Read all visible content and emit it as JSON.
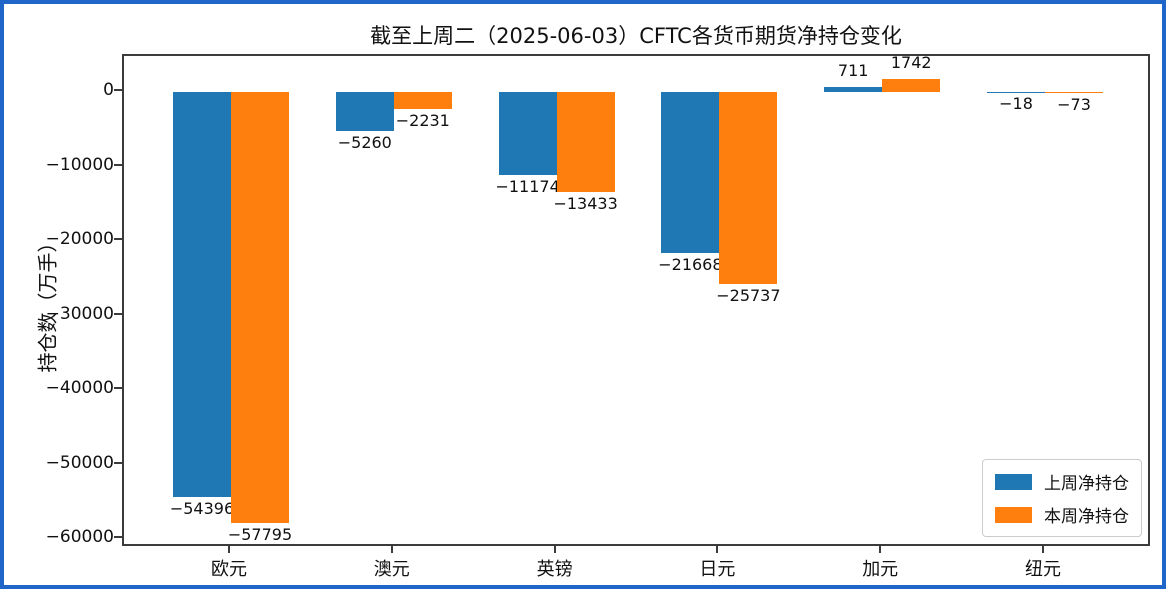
{
  "page": {
    "outer_border_color": "#2065c8",
    "background_color": "#ffffff",
    "axes_frame_color": "#3b3b3b"
  },
  "chart_data": {
    "type": "bar",
    "title": "截至上周二（2025-06-03）CFTC各货币期货净持仓变化",
    "xlabel": "",
    "ylabel": "持仓数（万手）",
    "categories": [
      "欧元",
      "澳元",
      "英镑",
      "日元",
      "加元",
      "纽元"
    ],
    "series": [
      {
        "name": "上周净持仓",
        "color": "#1f77b4",
        "values": [
          -54396,
          -5260,
          -11174,
          -21668,
          711,
          -18
        ]
      },
      {
        "name": "本周净持仓",
        "color": "#ff7f0e",
        "values": [
          -57795,
          -2231,
          -13433,
          -25737,
          1742,
          -73
        ]
      }
    ],
    "y_ticks": [
      0,
      -10000,
      -20000,
      -30000,
      -40000,
      -50000,
      -60000
    ],
    "ylim": [
      -61200,
      4830
    ],
    "grid": false,
    "bar_value_labels": true,
    "legend_position": "lower right"
  }
}
